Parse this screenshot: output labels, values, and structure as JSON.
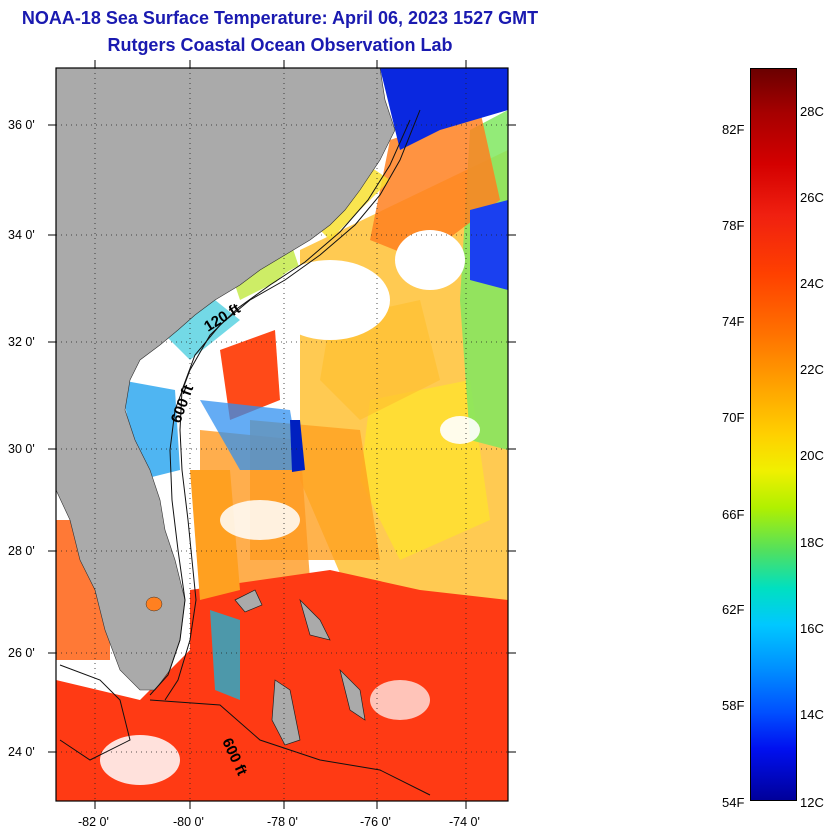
{
  "title": "NOAA-18 Sea Surface Temperature:  April 06, 2023 1527 GMT",
  "subtitle": "Rutgers Coastal Ocean Observation Lab",
  "map": {
    "y_ticks": [
      "36 0'",
      "34 0'",
      "32 0'",
      "30 0'",
      "28 0'",
      "26 0'",
      "24 0'"
    ],
    "x_ticks": [
      "-82 0'",
      "-80 0'",
      "-78 0'",
      "-76 0'",
      "-74 0'"
    ],
    "contours": [
      "120 ft",
      "600 ft",
      "600 ft"
    ],
    "colors": {
      "land": "#aaaaaa",
      "cloud": "#ffffff"
    }
  },
  "colorbar": {
    "fahrenheit": [
      "82F",
      "78F",
      "74F",
      "70F",
      "66F",
      "62F",
      "58F",
      "54F"
    ],
    "celsius": [
      "28C",
      "26C",
      "24C",
      "22C",
      "20C",
      "18C",
      "16C",
      "14C",
      "12C"
    ]
  }
}
